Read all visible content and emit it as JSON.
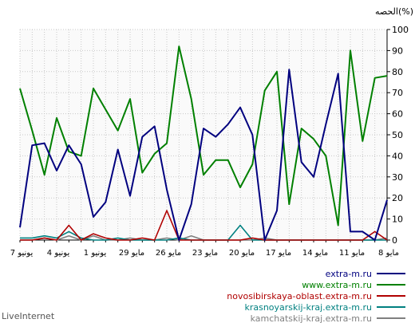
{
  "footer": "LiveInternet",
  "chart_data": {
    "type": "line",
    "ylabel": "الحصه(%)",
    "ylim": [
      0,
      100
    ],
    "yticks": [
      0,
      10,
      20,
      30,
      40,
      50,
      60,
      70,
      80,
      90,
      100
    ],
    "grid": true,
    "x_tick_labels": [
      "7 يونيو",
      "4 يونيو",
      "1 يونيو",
      "29 مايو",
      "26 مايو",
      "23 مايو",
      "20 مايو",
      "17 مايو",
      "14 مايو",
      "11 مايو",
      "8 مايو"
    ],
    "legend_position": "bottom-right",
    "series": [
      {
        "name": "extra-m.ru",
        "color": "#00007f",
        "values": [
          6,
          45,
          46,
          33,
          45,
          36,
          11,
          18,
          43,
          21,
          49,
          54,
          24,
          0,
          17,
          53,
          49,
          55,
          63,
          50,
          0,
          14,
          81,
          37,
          30,
          55,
          79,
          4,
          4,
          0,
          19
        ]
      },
      {
        "name": "www.extra-m.ru",
        "color": "#008000",
        "values": [
          72,
          52,
          31,
          58,
          42,
          40,
          72,
          62,
          52,
          67,
          32,
          41,
          46,
          92,
          67,
          31,
          38,
          38,
          25,
          36,
          71,
          80,
          17,
          53,
          48,
          40,
          7,
          90,
          47,
          77,
          78
        ]
      },
      {
        "name": "novosibirskaya-oblast.extra-m.ru",
        "color": "#b00000",
        "values": [
          0,
          0,
          1,
          0,
          7,
          0,
          3,
          1,
          0,
          0,
          1,
          0,
          14,
          0,
          0,
          0,
          0,
          0,
          0,
          1,
          0,
          0,
          0,
          0,
          0,
          0,
          0,
          0,
          0,
          4,
          0
        ]
      },
      {
        "name": "krasnoyarskij-kraj.extra-m.ru",
        "color": "#008080",
        "values": [
          1,
          1,
          2,
          1,
          4,
          1,
          0,
          0,
          1,
          0,
          0,
          0,
          0,
          1,
          0,
          0,
          0,
          0,
          7,
          0,
          0,
          0,
          0,
          0,
          0,
          0,
          0,
          0,
          0,
          0,
          0
        ]
      },
      {
        "name": "kamchatskij-kraj.extra-m.ru",
        "color": "#808080",
        "values": [
          0,
          0,
          1,
          0,
          2,
          0,
          2,
          0,
          0,
          1,
          0,
          0,
          1,
          0,
          2,
          0,
          0,
          0,
          0,
          0,
          1,
          0,
          0,
          0,
          0,
          0,
          0,
          0,
          0,
          0,
          1
        ]
      }
    ]
  }
}
